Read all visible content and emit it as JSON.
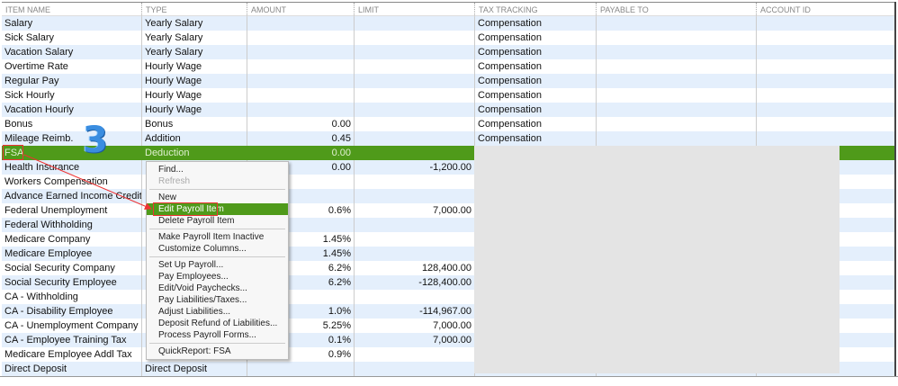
{
  "columns": [
    "ITEM NAME",
    "TYPE",
    "AMOUNT",
    "LIMIT",
    "TAX TRACKING",
    "PAYABLE TO",
    "ACCOUNT ID"
  ],
  "rows": [
    [
      "Salary",
      "Yearly Salary",
      "",
      "",
      "Compensation",
      "",
      ""
    ],
    [
      "Sick Salary",
      "Yearly Salary",
      "",
      "",
      "Compensation",
      "",
      ""
    ],
    [
      "Vacation Salary",
      "Yearly Salary",
      "",
      "",
      "Compensation",
      "",
      ""
    ],
    [
      "Overtime Rate",
      "Hourly Wage",
      "",
      "",
      "Compensation",
      "",
      ""
    ],
    [
      "Regular Pay",
      "Hourly Wage",
      "",
      "",
      "Compensation",
      "",
      ""
    ],
    [
      "Sick Hourly",
      "Hourly Wage",
      "",
      "",
      "Compensation",
      "",
      ""
    ],
    [
      "Vacation Hourly",
      "Hourly Wage",
      "",
      "",
      "Compensation",
      "",
      ""
    ],
    [
      "Bonus",
      "Bonus",
      "0.00",
      "",
      "Compensation",
      "",
      ""
    ],
    [
      "Mileage Reimb.",
      "Addition",
      "0.45",
      "",
      "Compensation",
      "",
      ""
    ],
    [
      "FSA",
      "Deduction",
      "0.00",
      "",
      "",
      "",
      ""
    ],
    [
      "Health Insurance",
      "",
      "0.00",
      "-1,200.00",
      "",
      "",
      ""
    ],
    [
      "Workers Compensation",
      "",
      "",
      "",
      "",
      "",
      ""
    ],
    [
      "Advance Earned Income Credit",
      "",
      "",
      "",
      "",
      "",
      ""
    ],
    [
      "Federal Unemployment",
      "",
      "0.6%",
      "7,000.00",
      "",
      "",
      ""
    ],
    [
      "Federal Withholding",
      "",
      "",
      "",
      "",
      "",
      ""
    ],
    [
      "Medicare Company",
      "",
      "1.45%",
      "",
      "",
      "",
      ""
    ],
    [
      "Medicare Employee",
      "",
      "1.45%",
      "",
      "",
      "",
      ""
    ],
    [
      "Social Security Company",
      "",
      "6.2%",
      "128,400.00",
      "",
      "",
      ""
    ],
    [
      "Social Security Employee",
      "",
      "6.2%",
      "-128,400.00",
      "",
      "",
      ""
    ],
    [
      "CA - Withholding",
      "",
      "",
      "",
      "",
      "",
      ""
    ],
    [
      "CA - Disability Employee",
      "",
      "1.0%",
      "-114,967.00",
      "",
      "",
      ""
    ],
    [
      "CA - Unemployment Company",
      "",
      "5.25%",
      "7,000.00",
      "",
      "",
      ""
    ],
    [
      "CA - Employee Training Tax",
      "",
      "0.1%",
      "7,000.00",
      "",
      "",
      ""
    ],
    [
      "Medicare Employee Addl Tax",
      "",
      "0.9%",
      "",
      "",
      "",
      ""
    ],
    [
      "Direct Deposit",
      "Direct Deposit",
      "",
      "",
      "",
      "",
      ""
    ]
  ],
  "selected_row": 9,
  "context_menu": [
    {
      "label": "Find..."
    },
    {
      "label": "Refresh",
      "disabled": true
    },
    {
      "sep": true
    },
    {
      "label": "New"
    },
    {
      "label": "Edit Payroll Item",
      "highlighted": true
    },
    {
      "label": "Delete Payroll Item"
    },
    {
      "sep": true
    },
    {
      "label": "Make Payroll Item Inactive"
    },
    {
      "label": "Customize Columns..."
    },
    {
      "sep": true
    },
    {
      "label": "Set Up Payroll..."
    },
    {
      "label": "Pay Employees..."
    },
    {
      "label": "Edit/Void Paychecks..."
    },
    {
      "label": "Pay Liabilities/Taxes..."
    },
    {
      "label": "Adjust Liabilities..."
    },
    {
      "label": "Deposit Refund of Liabilities..."
    },
    {
      "label": "Process Payroll Forms..."
    },
    {
      "sep": true
    },
    {
      "label": "QuickReport: FSA"
    }
  ],
  "annotation": {
    "step": "3"
  },
  "colors": {
    "selection": "#4f9a1a",
    "alt_row": "#e4effc",
    "annotation": "#e33333",
    "step_number": "#3a8de0"
  }
}
